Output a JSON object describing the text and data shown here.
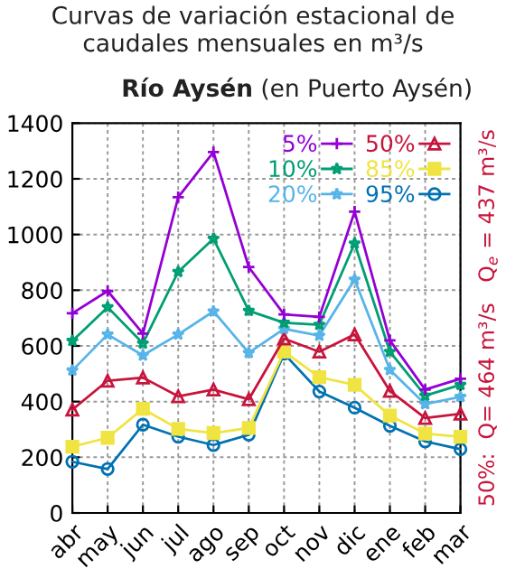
{
  "chart_data": {
    "type": "line",
    "title": "Curvas de variación estacional de\ncaudales mensuales en m³/s",
    "subtitle": "Río Aysén (en Puerto Aysén)",
    "categories": [
      "abr",
      "may",
      "jun",
      "jul",
      "ago",
      "sep",
      "oct",
      "nov",
      "dic",
      "ene",
      "feb",
      "mar"
    ],
    "series": [
      {
        "name": "5%",
        "color": "#9400d3",
        "marker": "cross",
        "values": [
          717,
          797,
          644,
          1134,
          1296,
          883,
          713,
          704,
          1082,
          620,
          443,
          482
        ]
      },
      {
        "name": "10%",
        "color": "#009e73",
        "marker": "star",
        "values": [
          618,
          739,
          609,
          866,
          985,
          726,
          683,
          676,
          968,
          579,
          421,
          460
        ]
      },
      {
        "name": "20%",
        "color": "#56b4e9",
        "marker": "star",
        "values": [
          512,
          641,
          566,
          641,
          724,
          575,
          661,
          637,
          838,
          514,
          391,
          417
        ]
      },
      {
        "name": "50%",
        "color": "#c8143c",
        "marker": "triangle",
        "values": [
          371,
          475,
          486,
          419,
          443,
          408,
          626,
          579,
          641,
          438,
          341,
          356
        ]
      },
      {
        "name": "85%",
        "color": "#f0e442",
        "marker": "square",
        "values": [
          238,
          270,
          374,
          302,
          287,
          305,
          579,
          488,
          460,
          350,
          285,
          274
        ]
      },
      {
        "name": "95%",
        "color": "#0072b2",
        "marker": "circle",
        "values": [
          184,
          158,
          317,
          274,
          244,
          281,
          572,
          436,
          378,
          313,
          257,
          229
        ]
      }
    ],
    "ylim": [
      0,
      1400
    ],
    "yticks": [
      0,
      200,
      400,
      600,
      800,
      1000,
      1200,
      1400
    ],
    "grid": true,
    "legend": "top right",
    "line_style": "solid",
    "annotations": [
      "50%:  Q= 464 m³/s   Q$_{e}$ = 437 m³/s"
    ]
  }
}
